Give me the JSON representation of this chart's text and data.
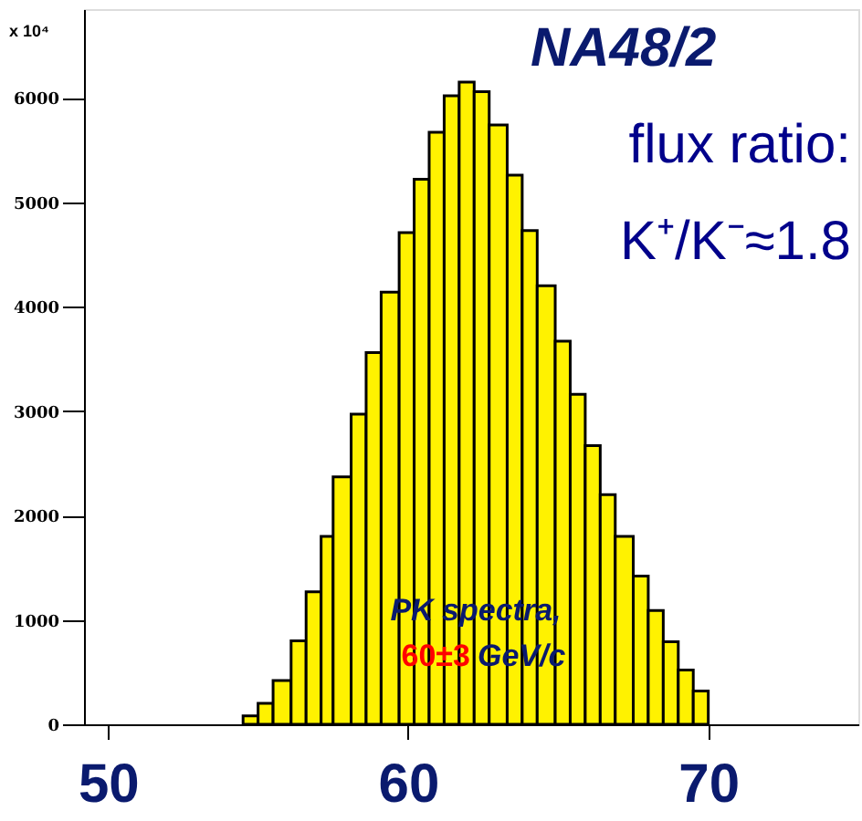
{
  "chart_data": {
    "type": "histogram",
    "color": "#fff200",
    "bins": [
      54.5,
      55.0,
      55.5,
      56.1,
      56.6,
      57.1,
      57.5,
      58.1,
      58.6,
      59.1,
      59.7,
      60.2,
      60.7,
      61.2,
      61.7,
      62.2,
      62.7,
      63.3,
      63.8,
      64.3,
      64.9,
      65.4,
      65.9,
      66.4,
      66.9,
      67.5,
      68.0,
      68.5,
      69.0,
      69.5,
      70.0
    ],
    "values": [
      80,
      200,
      420,
      800,
      1270,
      1800,
      2370,
      2970,
      3560,
      4140,
      4710,
      5220,
      5670,
      6020,
      6150,
      6060,
      5740,
      5260,
      4730,
      4200,
      3670,
      3160,
      2670,
      2200,
      1800,
      1420,
      1090,
      790,
      520,
      320
    ],
    "xlim": [
      49.2,
      75
    ],
    "xticks": [
      50,
      60,
      70
    ],
    "ylim": [
      0,
      6850
    ],
    "yticks": [
      0,
      1000,
      2000,
      3000,
      4000,
      5000,
      6000
    ],
    "grid": false,
    "annotations": [
      "NA48/2",
      "flux ratio:",
      "K⁺/K⁻≈1.8",
      "PK spectra,",
      "60±3",
      "GeV/c",
      "x 10⁴"
    ]
  }
}
